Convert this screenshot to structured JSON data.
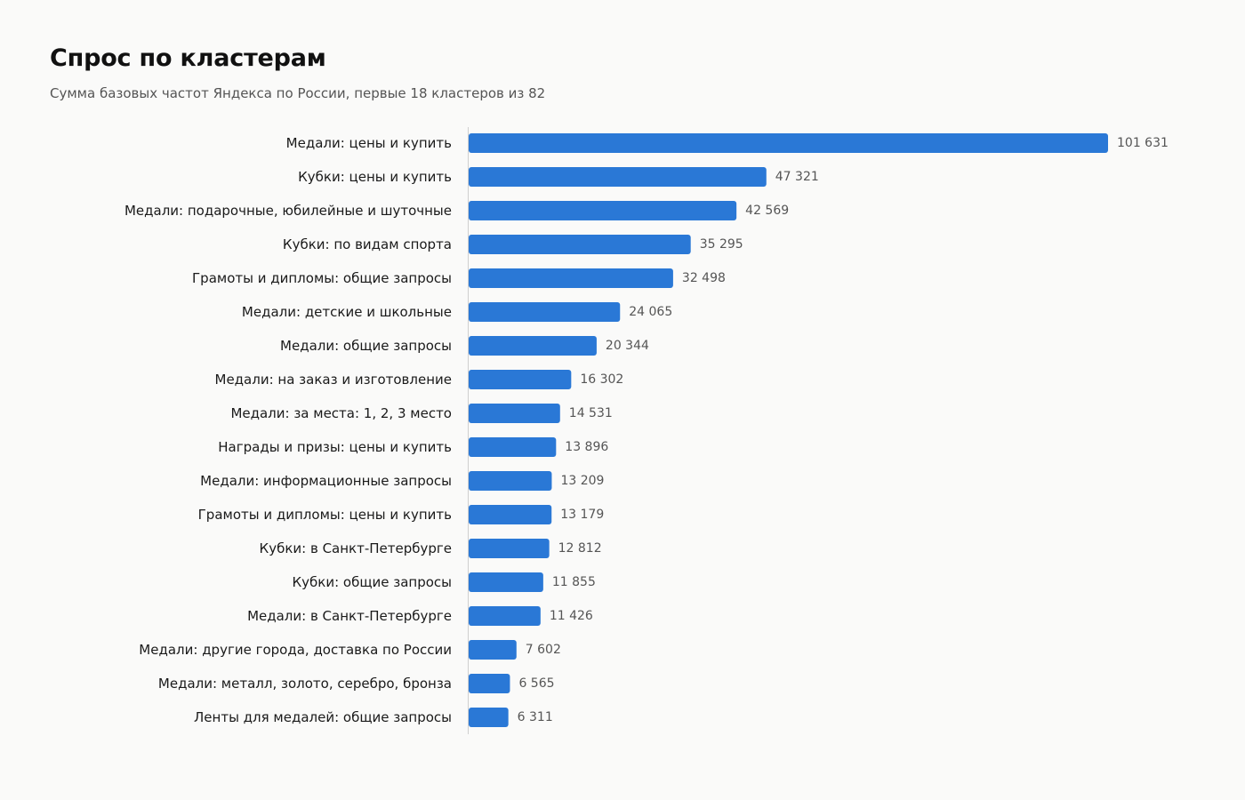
{
  "header": {
    "title": "Спрос по кластерам",
    "subtitle": "Сумма базовых частот Яндекса по России, первые 18 кластеров из 82"
  },
  "colors": {
    "bar": "#2a78d6",
    "background": "#fafaf9"
  },
  "chart_data": {
    "type": "bar",
    "orientation": "horizontal",
    "title": "Спрос по кластерам",
    "subtitle": "Сумма базовых частот Яндекса по России, первые 18 кластеров из 82",
    "xlabel": "",
    "ylabel": "",
    "grid": false,
    "xlim": [
      0,
      101631
    ],
    "categories": [
      "Медали: цены и купить",
      "Кубки: цены и купить",
      "Медали: подарочные, юбилейные и шуточные",
      "Кубки: по видам спорта",
      "Грамоты и дипломы: общие запросы",
      "Медали: детские и школьные",
      "Медали: общие запросы",
      "Медали: на заказ и изготовление",
      "Медали: за места: 1, 2, 3 место",
      "Награды и призы: цены и купить",
      "Медали: информационные запросы",
      "Грамоты и дипломы: цены и купить",
      "Кубки: в Санкт-Петербурге",
      "Кубки: общие запросы",
      "Медали: в Санкт-Петербурге",
      "Медали: другие города, доставка по России",
      "Медали: металл, золото, серебро, бронза",
      "Ленты для медалей: общие запросы"
    ],
    "values": [
      101631,
      47321,
      42569,
      35295,
      32498,
      24065,
      20344,
      16302,
      14531,
      13896,
      13209,
      13179,
      12812,
      11855,
      11426,
      7602,
      6565,
      6311
    ],
    "value_labels": [
      "101 631",
      "47 321",
      "42 569",
      "35 295",
      "32 498",
      "24 065",
      "20 344",
      "16 302",
      "14 531",
      "13 896",
      "13 209",
      "13 179",
      "12 812",
      "11 855",
      "11 426",
      "7 602",
      "6 565",
      "6 311"
    ]
  }
}
